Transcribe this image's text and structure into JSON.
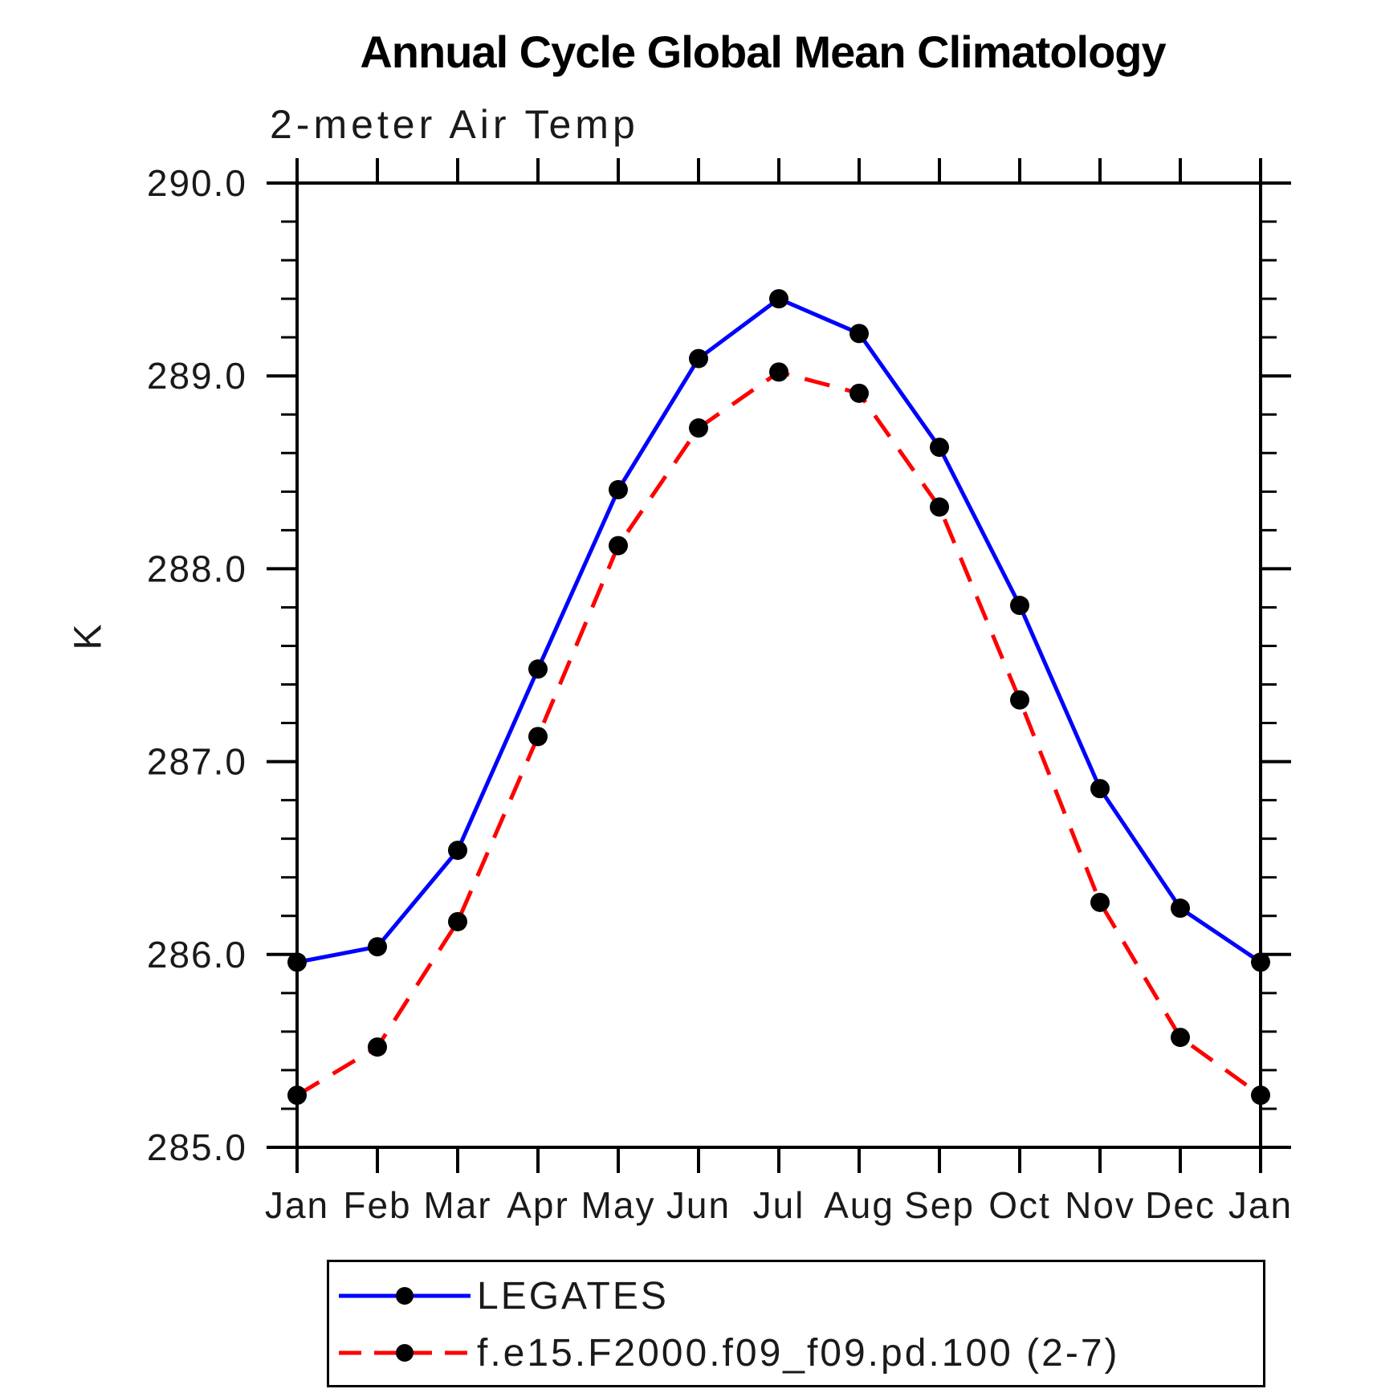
{
  "chart_data": {
    "type": "line",
    "title": "Annual Cycle Global Mean Climatology",
    "subtitle": "2-meter Air Temp",
    "ylabel": "K",
    "xlabel": "",
    "categories": [
      "Jan",
      "Feb",
      "Mar",
      "Apr",
      "May",
      "Jun",
      "Jul",
      "Aug",
      "Sep",
      "Oct",
      "Nov",
      "Dec",
      "Jan"
    ],
    "series": [
      {
        "name": "LEGATES",
        "color": "#0000ff",
        "line_style": "solid",
        "marker": "circle",
        "marker_color": "#000000",
        "values": [
          285.96,
          286.04,
          286.54,
          287.48,
          288.41,
          289.09,
          289.4,
          289.22,
          288.63,
          287.81,
          286.86,
          286.24,
          285.96
        ]
      },
      {
        "name": "f.e15.F2000.f09_f09.pd.100 (2-7)",
        "color": "#ff0000",
        "line_style": "dashed",
        "marker": "circle",
        "marker_color": "#000000",
        "values": [
          285.27,
          285.52,
          286.17,
          287.13,
          288.12,
          288.73,
          289.02,
          288.91,
          288.32,
          287.32,
          286.27,
          285.57,
          285.27
        ]
      }
    ],
    "ylim": [
      285.0,
      290.0
    ],
    "ytick_step": 1.0,
    "ytick_minor_step": 0.2,
    "ytick_labels": [
      "285.0",
      "286.0",
      "287.0",
      "288.0",
      "289.0",
      "290.0"
    ],
    "grid": false,
    "legend_position": "bottom",
    "axis_color": "#000000"
  }
}
